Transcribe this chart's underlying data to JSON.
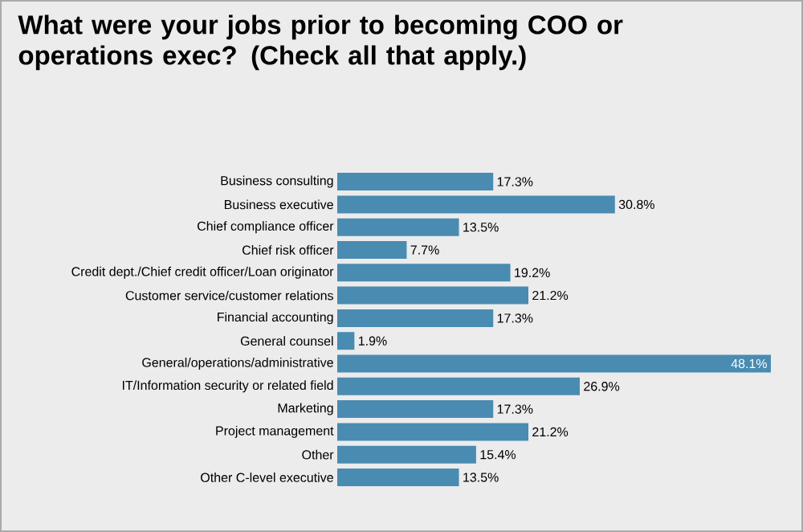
{
  "chart_data": {
    "type": "bar",
    "orientation": "horizontal",
    "title": "What were your jobs prior to becoming COO or operations exec? (Check all that apply.)",
    "categories": [
      "Business consulting",
      "Business executive",
      "Chief compliance officer",
      "Chief risk officer",
      "Credit dept./Chief credit officer/Loan originator",
      "Customer service/customer relations",
      "Financial accounting",
      "General counsel",
      "General/operations/administrative",
      "IT/Information security or related field",
      "Marketing",
      "Project management",
      "Other",
      "Other C-level executive"
    ],
    "values": [
      17.3,
      30.8,
      13.5,
      7.7,
      19.2,
      21.2,
      17.3,
      1.9,
      48.1,
      26.9,
      17.3,
      21.2,
      15.4,
      13.5
    ],
    "value_labels": [
      "17.3%",
      "30.8%",
      "13.5%",
      "7.7%",
      "19.2%",
      "21.2%",
      "17.3%",
      "1.9%",
      "48.1%",
      "26.9%",
      "17.3%",
      "21.2%",
      "15.4%",
      "13.5%"
    ],
    "color": "#4a8bb2"
  }
}
